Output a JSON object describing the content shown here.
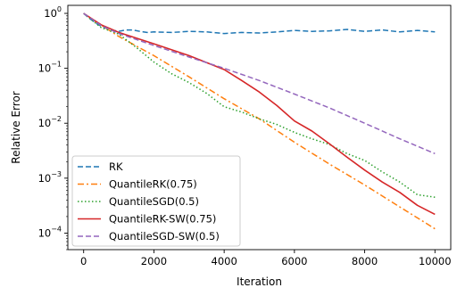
{
  "chart_data": {
    "type": "line",
    "title": "",
    "xlabel": "Iteration",
    "ylabel": "Relative Error",
    "xlim": [
      -450,
      10450
    ],
    "ylim": [
      5e-05,
      1.4
    ],
    "yscale": "log",
    "grid": false,
    "legend_position": "lower-left",
    "x_ticks": [
      0,
      2000,
      4000,
      6000,
      8000,
      10000
    ],
    "x_tick_labels": [
      "0",
      "2000",
      "4000",
      "6000",
      "8000",
      "10000"
    ],
    "y_ticks": [
      0.0001,
      0.001,
      0.01,
      0.1,
      1
    ],
    "y_tick_labels": [
      {
        "base": "10",
        "exp": "−4"
      },
      {
        "base": "10",
        "exp": "−3"
      },
      {
        "base": "10",
        "exp": "−2"
      },
      {
        "base": "10",
        "exp": "−1"
      },
      {
        "base": "10",
        "exp": "0"
      }
    ],
    "series": [
      {
        "name": "RK",
        "color": "#1f77b4",
        "style": "dashed",
        "x": [
          0,
          200,
          400,
          600,
          800,
          1000,
          1200,
          1400,
          1600,
          1800,
          2000,
          2500,
          3000,
          3500,
          4000,
          4500,
          5000,
          5500,
          6000,
          6500,
          7000,
          7500,
          8000,
          8500,
          9000,
          9500,
          10000
        ],
        "y": [
          1.0,
          0.78,
          0.63,
          0.55,
          0.5,
          0.47,
          0.5,
          0.5,
          0.47,
          0.45,
          0.46,
          0.45,
          0.47,
          0.46,
          0.43,
          0.45,
          0.44,
          0.46,
          0.49,
          0.47,
          0.48,
          0.51,
          0.47,
          0.5,
          0.46,
          0.49,
          0.46
        ]
      },
      {
        "name": "QuantileRK(0.75)",
        "color": "#ff7f0e",
        "style": "dashdot",
        "x": [
          0,
          500,
          1000,
          2000,
          3000,
          4000,
          5000,
          6000,
          7000,
          8000,
          9000,
          10000
        ],
        "y": [
          1.0,
          0.61,
          0.38,
          0.17,
          0.07,
          0.028,
          0.012,
          0.0045,
          0.0018,
          0.00075,
          0.0003,
          0.00012
        ]
      },
      {
        "name": "QuantileSGD(0.5)",
        "color": "#2ca02c",
        "style": "dotted",
        "x": [
          0,
          500,
          1000,
          1500,
          2000,
          2500,
          3000,
          3500,
          4000,
          4500,
          5000,
          5500,
          6000,
          6500,
          7000,
          7500,
          8000,
          8500,
          9000,
          9500,
          10000
        ],
        "y": [
          1.0,
          0.55,
          0.42,
          0.24,
          0.13,
          0.08,
          0.055,
          0.035,
          0.02,
          0.016,
          0.012,
          0.0095,
          0.0068,
          0.0052,
          0.0041,
          0.0028,
          0.0021,
          0.0013,
          0.00085,
          0.0005,
          0.00045
        ]
      },
      {
        "name": "QuantileRK-SW(0.75)",
        "color": "#d62728",
        "style": "solid",
        "x": [
          0,
          500,
          1000,
          2000,
          3000,
          4000,
          4500,
          5000,
          5500,
          6000,
          6500,
          7000,
          7500,
          8000,
          8500,
          9000,
          9500,
          10000
        ],
        "y": [
          1.0,
          0.62,
          0.45,
          0.28,
          0.17,
          0.095,
          0.06,
          0.037,
          0.021,
          0.011,
          0.0072,
          0.0042,
          0.0024,
          0.0014,
          0.00085,
          0.00055,
          0.00032,
          0.00022
        ]
      },
      {
        "name": "QuantileSGD-SW(0.5)",
        "color": "#9467bd",
        "style": "dashed",
        "x": [
          0,
          500,
          1000,
          2000,
          3000,
          4000,
          5000,
          6000,
          7000,
          8000,
          9000,
          10000
        ],
        "y": [
          1.0,
          0.6,
          0.43,
          0.26,
          0.16,
          0.1,
          0.06,
          0.034,
          0.019,
          0.01,
          0.0052,
          0.0028
        ]
      }
    ]
  }
}
